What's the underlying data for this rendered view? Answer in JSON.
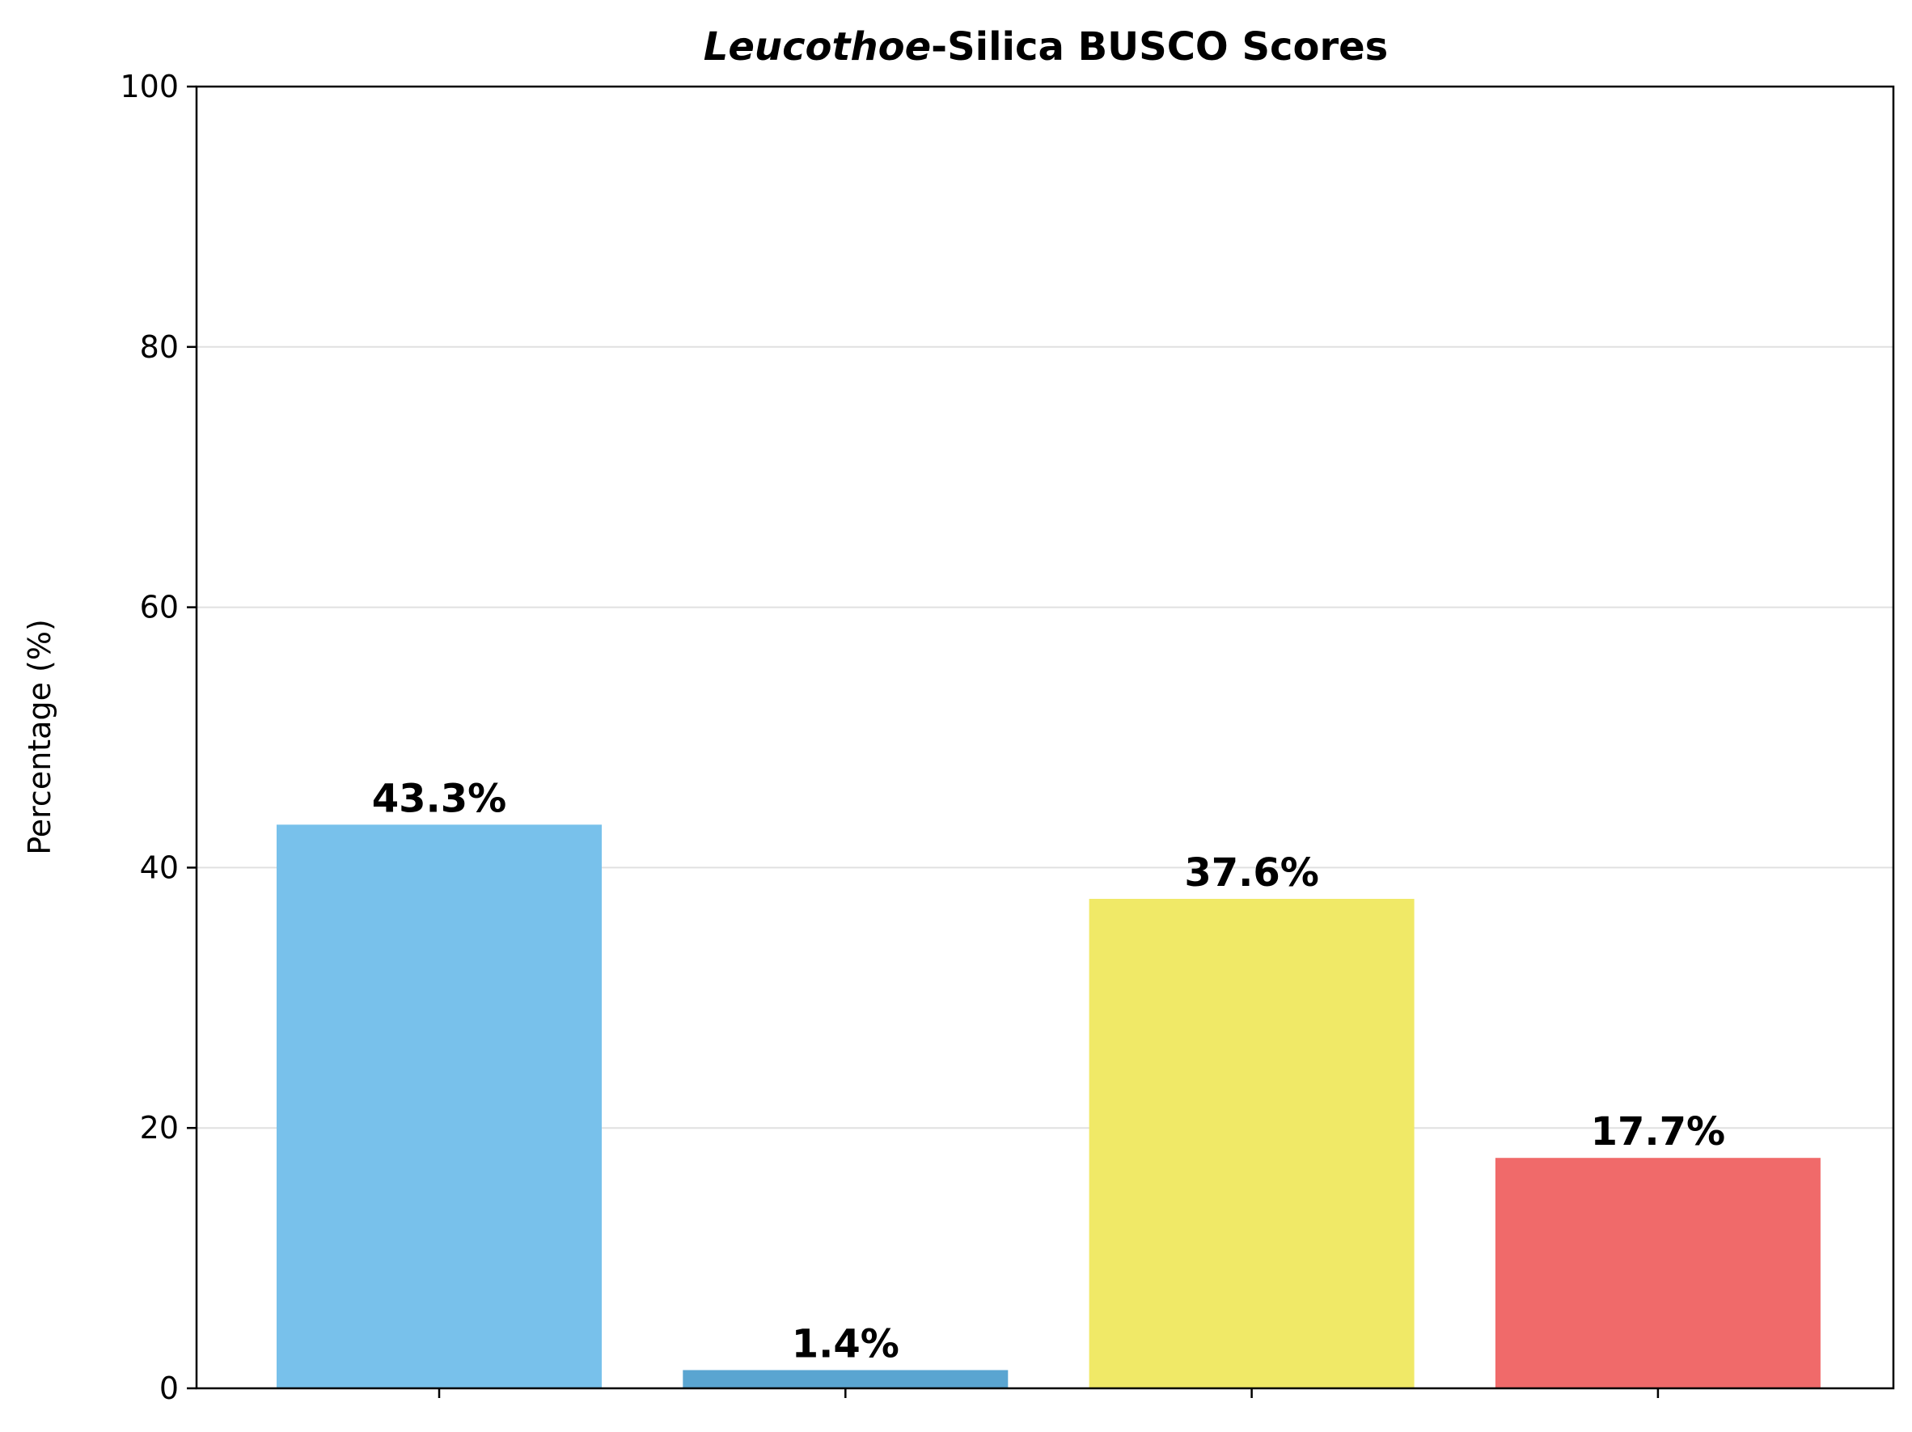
{
  "chart_data": {
    "type": "bar",
    "title_italic": "Leucothoe",
    "title_rest": "-Silica BUSCO Scores",
    "xlabel": "",
    "ylabel": "Percentage (%)",
    "categories": [
      "",
      "",
      "",
      ""
    ],
    "values": [
      43.3,
      1.4,
      37.6,
      17.7
    ],
    "value_labels": [
      "43.3%",
      "1.4%",
      "37.6%",
      "17.7%"
    ],
    "colors": [
      "#78c1eb",
      "#5aa5d1",
      "#f0e967",
      "#f06a6a"
    ],
    "ylim": [
      0,
      100
    ],
    "yticks": [
      0,
      20,
      40,
      60,
      80,
      100
    ],
    "ytick_labels": [
      "0",
      "20",
      "40",
      "60",
      "80",
      "100"
    ],
    "grid": "horizontal",
    "legend": "none"
  }
}
